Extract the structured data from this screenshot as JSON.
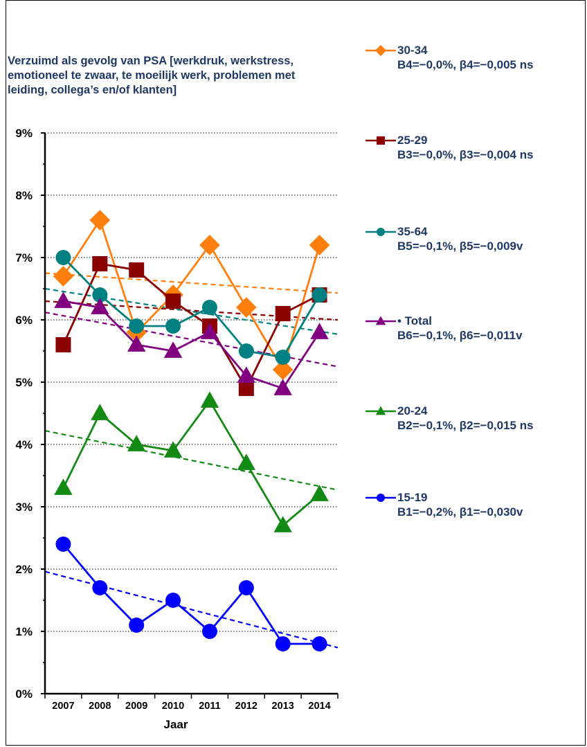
{
  "chart_data": {
    "type": "line",
    "title": "Verzuimd als gevolg van PSA [werkdruk, werkstress, emotioneel te zwaar, te moeilijk werk, problemen met leiding, collega’s en/of klanten]",
    "xlabel": "Jaar",
    "ylabel": "",
    "ylim": [
      0,
      9
    ],
    "y_ticks": [
      "0%",
      "1%",
      "2%",
      "3%",
      "4%",
      "5%",
      "6%",
      "7%",
      "8%",
      "9%"
    ],
    "x": [
      "2007",
      "2008",
      "2009",
      "2010",
      "2011",
      "2012",
      "2013",
      "2014"
    ],
    "grid": "horizontal dotted",
    "legend_position": "right",
    "series": [
      {
        "name": "30-34",
        "note": "B4=−0,0%,  β4=−0,005 ns",
        "color": "#ff7f0e",
        "marker": "diamond",
        "values": [
          6.7,
          7.6,
          5.8,
          6.4,
          7.2,
          6.2,
          5.2,
          7.2
        ],
        "trend": [
          6.75,
          6.43
        ]
      },
      {
        "name": "25-29",
        "note": "B3=−0,0%,  β3=−0,004 ns",
        "color": "#8b0000",
        "marker": "square",
        "values": [
          5.6,
          6.9,
          6.8,
          6.3,
          5.9,
          4.9,
          6.1,
          6.4
        ],
        "trend": [
          6.3,
          6.0
        ]
      },
      {
        "name": "35-64",
        "note": "B5=−0,1%,  β5=−0,009v",
        "color": "#008080",
        "marker": "circle",
        "values": [
          7.0,
          6.4,
          5.9,
          5.9,
          6.2,
          5.5,
          5.4,
          6.4
        ],
        "trend": [
          6.5,
          5.77
        ]
      },
      {
        "name": "• Total",
        "note": "B6=−0,1%,  β6=−0,011v",
        "color": "#800080",
        "marker": "triangle",
        "values": [
          6.3,
          6.2,
          5.6,
          5.5,
          5.8,
          5.1,
          4.9,
          5.8
        ],
        "trend": [
          6.12,
          5.25
        ]
      },
      {
        "name": "20-24",
        "note": "B2=−0,1%,  β2=−0,015 ns",
        "color": "#138a13",
        "marker": "triangle",
        "values": [
          3.3,
          4.5,
          4.0,
          3.9,
          4.7,
          3.7,
          2.7,
          3.2
        ],
        "trend": [
          4.22,
          3.27
        ]
      },
      {
        "name": "15-19",
        "note": "B1=−0,2%,  β1=−0,030v",
        "color": "#0000ff",
        "marker": "circle",
        "values": [
          2.4,
          1.7,
          1.1,
          1.5,
          1.0,
          1.7,
          0.8,
          0.8
        ],
        "trend": [
          1.96,
          0.74
        ]
      }
    ]
  }
}
